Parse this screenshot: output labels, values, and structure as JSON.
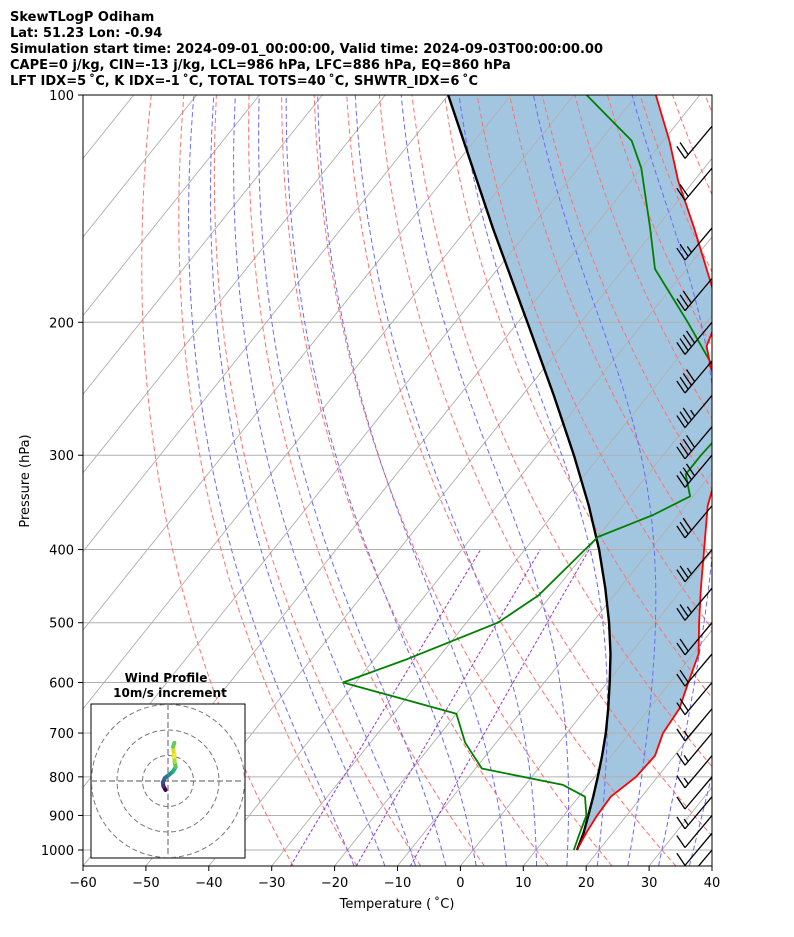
{
  "header": {
    "line1": "SkewTLogP Odiham",
    "line2": "Lat: 51.23   Lon: -0.94",
    "line3": "Simulation start time: 2024-09-01_00:00:00, Valid time: 2024-09-03T00:00:00.00",
    "line4": "CAPE=0 j/kg, CIN=-13 j/kg, LCL=986 hPa, LFC=886 hPa, EQ=860 hPa",
    "line5": "LFT IDX=5 ˚C, K IDX=-1 ˚C, TOTAL TOTS=40 ˚C, SHWTR_IDX=6 ˚C"
  },
  "chart_data": {
    "type": "line",
    "skew": true,
    "xlabel": "Temperature ( ˚C)",
    "ylabel": "Pressure (hPa)",
    "xlim": [
      -60,
      40
    ],
    "ylim": [
      1050,
      100
    ],
    "y_scale": "log",
    "grid": true,
    "x_ticks": [
      -60,
      -50,
      -40,
      -30,
      -20,
      -10,
      0,
      10,
      20,
      30,
      40
    ],
    "x_tick_labels": [
      "−60",
      "−50",
      "−40",
      "−30",
      "−20",
      "−10",
      "0",
      "10",
      "20",
      "30",
      "40"
    ],
    "y_ticks": [
      100,
      200,
      300,
      400,
      500,
      600,
      700,
      800,
      900,
      1000
    ],
    "y_tick_labels": [
      "100",
      "200",
      "300",
      "400",
      "500",
      "600",
      "700",
      "800",
      "900",
      "1000"
    ],
    "series": [
      {
        "role": "temperature",
        "color": "#ff0000",
        "points": [
          [
            1000,
            16.5
          ],
          [
            950,
            15.8
          ],
          [
            900,
            15.3
          ],
          [
            850,
            15.1
          ],
          [
            800,
            16.6
          ],
          [
            750,
            16.9
          ],
          [
            700,
            15.3
          ],
          [
            650,
            14.8
          ],
          [
            600,
            12.9
          ],
          [
            550,
            10.9
          ],
          [
            500,
            7.0
          ],
          [
            450,
            2.9
          ],
          [
            400,
            -1.5
          ],
          [
            350,
            -6.5
          ],
          [
            325,
            -8.5
          ],
          [
            300,
            -10.2
          ],
          [
            275,
            -13.0
          ],
          [
            250,
            -18.0
          ],
          [
            230,
            -23.5
          ],
          [
            215,
            -27.0
          ],
          [
            200,
            -28.5
          ],
          [
            180,
            -33.5
          ],
          [
            150,
            -44.0
          ],
          [
            130,
            -52.5
          ],
          [
            115,
            -59.0
          ],
          [
            100,
            -67.0
          ]
        ]
      },
      {
        "role": "dewpoint",
        "color": "#008000",
        "points": [
          [
            1000,
            16.0
          ],
          [
            950,
            14.8
          ],
          [
            900,
            13.6
          ],
          [
            850,
            11.0
          ],
          [
            820,
            6.0
          ],
          [
            780,
            -9.0
          ],
          [
            720,
            -15.0
          ],
          [
            660,
            -20.0
          ],
          [
            600,
            -42.0
          ],
          [
            560,
            -35.0
          ],
          [
            500,
            -25.0
          ],
          [
            460,
            -22.0
          ],
          [
            420,
            -21.0
          ],
          [
            385,
            -20.0
          ],
          [
            360,
            -14.0
          ],
          [
            340,
            -10.5
          ],
          [
            318,
            -14.0
          ],
          [
            300,
            -14.0
          ],
          [
            275,
            -13.5
          ],
          [
            240,
            -20.0
          ],
          [
            200,
            -33.0
          ],
          [
            170,
            -45.0
          ],
          [
            150,
            -51.0
          ],
          [
            125,
            -60.0
          ],
          [
            115,
            -65.0
          ],
          [
            100,
            -78.0
          ]
        ]
      },
      {
        "role": "parcel",
        "color": "#000000",
        "points": [
          [
            1000,
            16.5
          ],
          [
            950,
            15.4
          ],
          [
            900,
            13.9
          ],
          [
            850,
            12.3
          ],
          [
            800,
            10.5
          ],
          [
            750,
            8.5
          ],
          [
            700,
            6.2
          ],
          [
            650,
            3.5
          ],
          [
            600,
            0.4
          ],
          [
            550,
            -3.1
          ],
          [
            500,
            -7.3
          ],
          [
            450,
            -12.3
          ],
          [
            400,
            -18.2
          ],
          [
            350,
            -25.4
          ],
          [
            300,
            -34.2
          ],
          [
            250,
            -45.0
          ],
          [
            200,
            -58.5
          ],
          [
            150,
            -76.0
          ],
          [
            100,
            -100.0
          ]
        ]
      }
    ],
    "shaded_region": {
      "between": [
        "temperature",
        "parcel"
      ],
      "color": "#a3c6e0"
    },
    "background_lines": {
      "isotherms_color": "#b0b0b0",
      "dry_adiabats_color": "#ff7070",
      "moist_adiabats_color": "#6a6aff",
      "mixing_ratio_color": "#9933cc"
    },
    "wind_barbs": [
      {
        "p": 1000,
        "kt": 5
      },
      {
        "p": 950,
        "kt": 10
      },
      {
        "p": 900,
        "kt": 10
      },
      {
        "p": 850,
        "kt": 15
      },
      {
        "p": 800,
        "kt": 10
      },
      {
        "p": 750,
        "kt": 15
      },
      {
        "p": 700,
        "kt": 15
      },
      {
        "p": 650,
        "kt": 15
      },
      {
        "p": 600,
        "kt": 20
      },
      {
        "p": 550,
        "kt": 20
      },
      {
        "p": 500,
        "kt": 20
      },
      {
        "p": 450,
        "kt": 25
      },
      {
        "p": 400,
        "kt": 25
      },
      {
        "p": 350,
        "kt": 30
      },
      {
        "p": 300,
        "kt": 40
      },
      {
        "p": 275,
        "kt": 40
      },
      {
        "p": 250,
        "kt": 35
      },
      {
        "p": 225,
        "kt": 40
      },
      {
        "p": 200,
        "kt": 40
      },
      {
        "p": 175,
        "kt": 30
      },
      {
        "p": 150,
        "kt": 25
      },
      {
        "p": 125,
        "kt": 20
      },
      {
        "p": 110,
        "kt": 20
      }
    ],
    "hodograph": {
      "title": "Wind Profile",
      "subtitle": "10m/s increment",
      "rings": [
        10,
        20,
        30
      ],
      "trace": [
        [
          -1.0,
          -3.5
        ],
        [
          -1.8,
          -2.0
        ],
        [
          -2.0,
          -0.5
        ],
        [
          -1.2,
          1.2
        ],
        [
          0.5,
          2.5
        ],
        [
          2.0,
          3.8
        ],
        [
          3.0,
          5.5
        ],
        [
          2.6,
          7.5
        ],
        [
          2.5,
          9.5
        ],
        [
          2.2,
          11.5
        ],
        [
          2.0,
          13.5
        ],
        [
          2.5,
          15.0
        ]
      ]
    }
  }
}
